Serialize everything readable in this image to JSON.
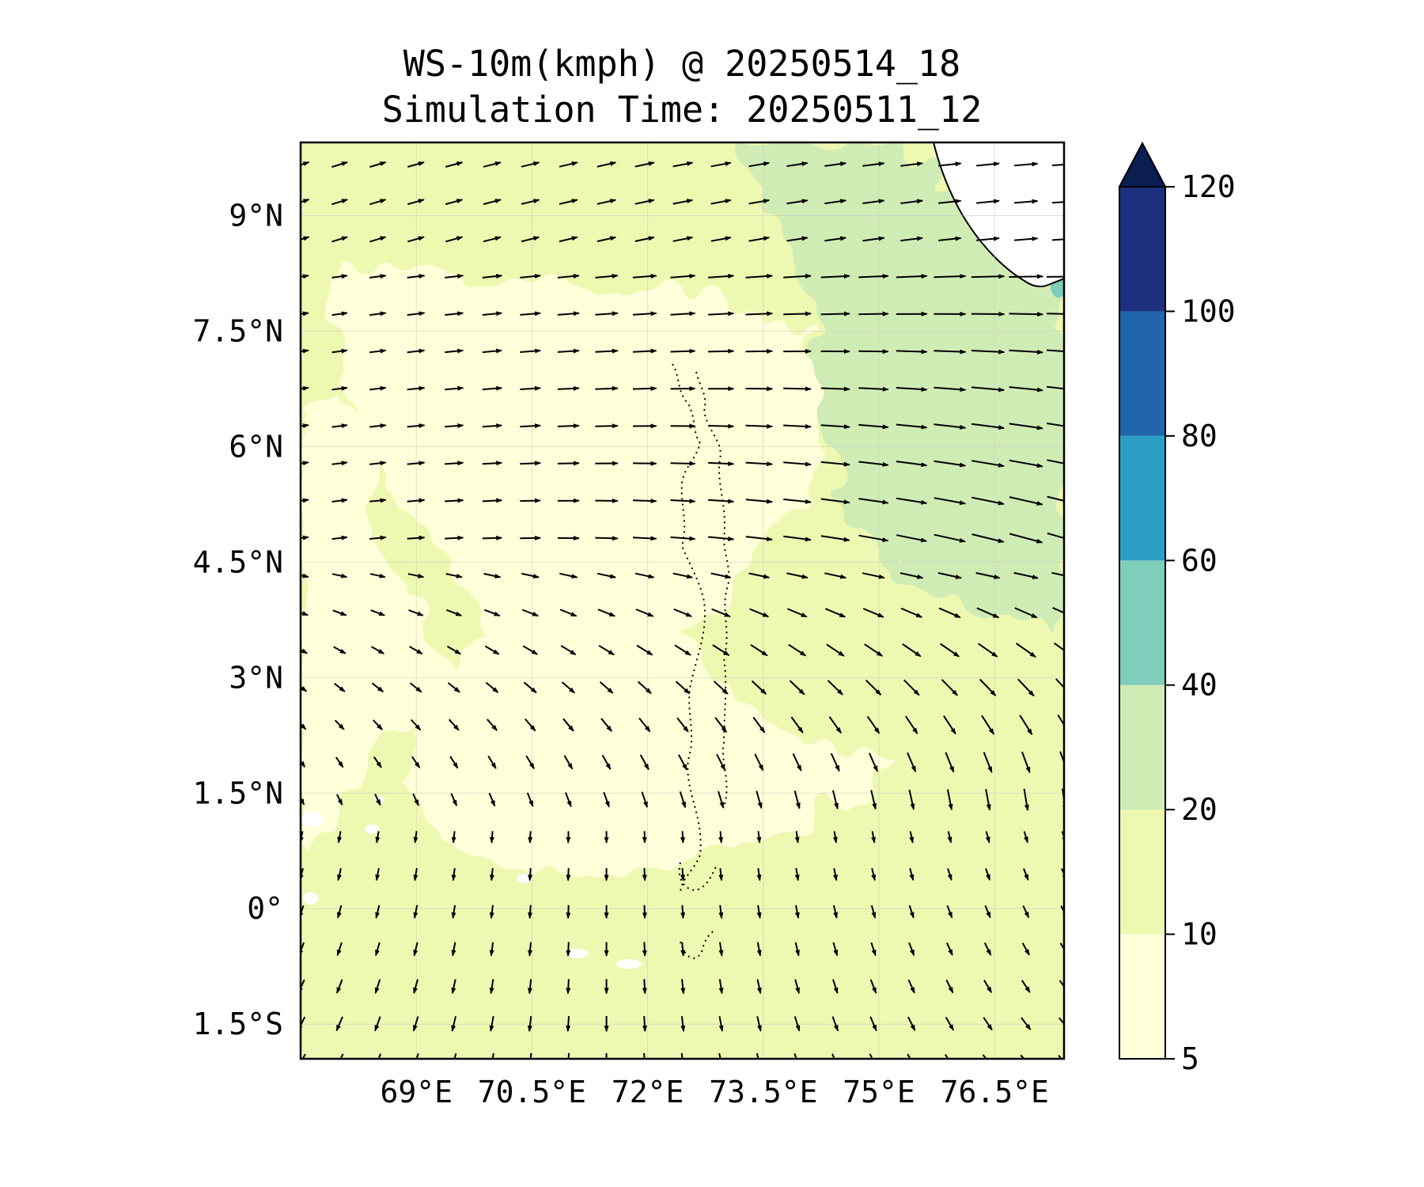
{
  "chart_data": {
    "type": "map",
    "title": "WS-10m(kmph) @ 20250514_18",
    "subtitle": "Simulation Time: 20250511_12",
    "variable": "10 m wind speed (kmph) with wind direction vectors",
    "extent": {
      "lon": [
        67.5,
        77.4
      ],
      "lat": [
        -1.95,
        9.95
      ]
    },
    "lon_ticks": [
      {
        "value": 69.0,
        "label": "69°E"
      },
      {
        "value": 70.5,
        "label": "70.5°E"
      },
      {
        "value": 72.0,
        "label": "72°E"
      },
      {
        "value": 73.5,
        "label": "73.5°E"
      },
      {
        "value": 75.0,
        "label": "75°E"
      },
      {
        "value": 76.5,
        "label": "76.5°E"
      }
    ],
    "lat_ticks": [
      {
        "value": 9.0,
        "label": "9°N"
      },
      {
        "value": 7.5,
        "label": "7.5°N"
      },
      {
        "value": 6.0,
        "label": "6°N"
      },
      {
        "value": 4.5,
        "label": "4.5°N"
      },
      {
        "value": 3.0,
        "label": "3°N"
      },
      {
        "value": 1.5,
        "label": "1.5°N"
      },
      {
        "value": 0.0,
        "label": "0°"
      },
      {
        "value": -1.5,
        "label": "1.5°S"
      }
    ],
    "gridlines": true,
    "colorbar": {
      "levels": [
        5,
        10,
        20,
        40,
        60,
        80,
        100,
        120
      ],
      "labels": [
        "5",
        "10",
        "20",
        "40",
        "60",
        "80",
        "100",
        "120"
      ],
      "colors": [
        "#ffffd9",
        "#edf8b1",
        "#d0ecb5",
        "#7fcdbb",
        "#2c9fc6",
        "#2165ac",
        "#1d2f7f"
      ],
      "extend": "max",
      "extend_color": "#0b1e54"
    },
    "field_regions": [
      {
        "range": "5-10",
        "description": "western and south-central open ocean"
      },
      {
        "range": "10-20",
        "description": "most of domain"
      },
      {
        "range": "20-40",
        "description": "northeast sector, roughly 74-77.4°E, 4-9.9°N"
      },
      {
        "range": "40-60",
        "description": "small patches near 77.3°E 8°N and off southwest India"
      }
    ],
    "wind_pattern": "westerlies north of ~3°N strengthening toward northeast; southerly to south-southeasterly flow south of ~1°N",
    "features": [
      "southwest coast of India (top-right)",
      "Maldives atolls (dotted chain near 73.5°E)"
    ]
  }
}
